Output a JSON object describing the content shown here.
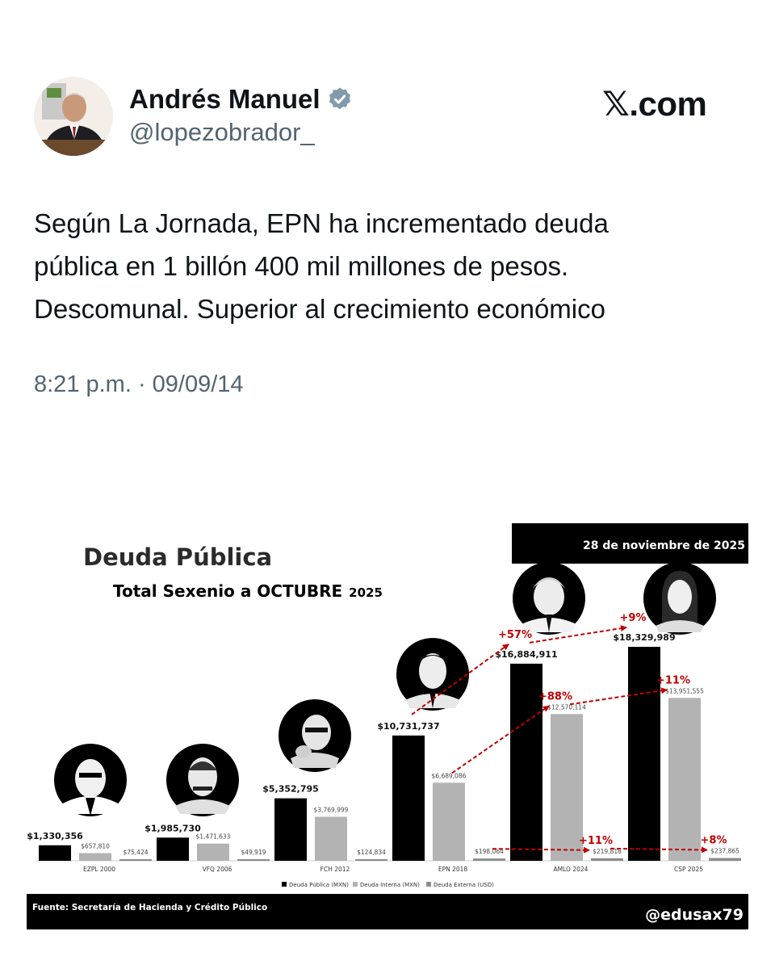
{
  "tweet": {
    "author_name": "Andrés Manuel",
    "handle": "@lopezobrador_",
    "brand": "𝕏.com",
    "text_lines": [
      "Según La Jornada, EPN ha incrementado deuda",
      "pública en 1 billón 400 mil millones de pesos.",
      "Descomunal. Superior al crecimiento económico"
    ],
    "timestamp": "8:21 p.m. · 09/09/14",
    "icons": {
      "avatar": "avatar",
      "verified": "verified-badge-icon"
    }
  },
  "infographic": {
    "title": "Deuda Pública",
    "subtitle_main": "Total Sexenio a OCTUBRE",
    "subtitle_year": "2025",
    "date_banner": "28 de noviembre de 2025",
    "footer_source": "Fuente: Secretaría de Hacienda y Crédito Público",
    "footer_handle": "@edusax79",
    "portrait_icons": [
      "portrait-ezpl-icon",
      "portrait-vfq-icon",
      "portrait-fch-icon",
      "portrait-epn-icon",
      "portrait-amlo-icon",
      "portrait-csp-icon"
    ]
  },
  "chart_data": {
    "type": "bar",
    "title": "Deuda Pública",
    "subtitle": "Total Sexenio a OCTUBRE 2025",
    "categories": [
      "EZPL 2000",
      "VFQ 2006",
      "FCH 2012",
      "EPN 2018",
      "AMLO 2024",
      "CSP 2025"
    ],
    "series": [
      {
        "name": "Deuda Pública (MXN)",
        "color": "#000000",
        "values": [
          1330356,
          1985730,
          5352795,
          10731737,
          16884911,
          18329989
        ],
        "labels": [
          "$1,330,356",
          "$1,985,730",
          "$5,352,795",
          "$10,731,737",
          "$16,884,911",
          "$18,329,989"
        ]
      },
      {
        "name": "Deuda Interna (MXN)",
        "color": "#b3b3b3",
        "values": [
          657810,
          1471633,
          3769999,
          6689086,
          12570114,
          13951555
        ],
        "labels": [
          "$657,810",
          "$1,471,633",
          "$3,769,999",
          "$6,689,086",
          "$12,570,114",
          "$13,951,555"
        ]
      },
      {
        "name": "Deuda Externa (USD)",
        "color": "#8c8c8c",
        "values": [
          75424,
          49919,
          124834,
          198064,
          219818,
          237865
        ],
        "labels": [
          "$75,424",
          "$49,919",
          "$124,834",
          "$198,064",
          "$219,818",
          "$237,865"
        ]
      }
    ],
    "growth_annotations": [
      {
        "series": "Deuda Pública (MXN)",
        "from": "EPN 2018",
        "to": "AMLO 2024",
        "label": "+57%"
      },
      {
        "series": "Deuda Pública (MXN)",
        "from": "AMLO 2024",
        "to": "CSP 2025",
        "label": "+9%"
      },
      {
        "series": "Deuda Interna (MXN)",
        "from": "EPN 2018",
        "to": "AMLO 2024",
        "label": "+88%"
      },
      {
        "series": "Deuda Interna (MXN)",
        "from": "AMLO 2024",
        "to": "CSP 2025",
        "label": "+11%"
      },
      {
        "series": "Deuda Externa (USD)",
        "from": "EPN 2018",
        "to": "AMLO 2024",
        "label": "+11%"
      },
      {
        "series": "Deuda Externa (USD)",
        "from": "AMLO 2024",
        "to": "CSP 2025",
        "label": "+8%"
      }
    ],
    "annotation_color": "#c00000",
    "legend_position": "bottom",
    "grid": false
  }
}
